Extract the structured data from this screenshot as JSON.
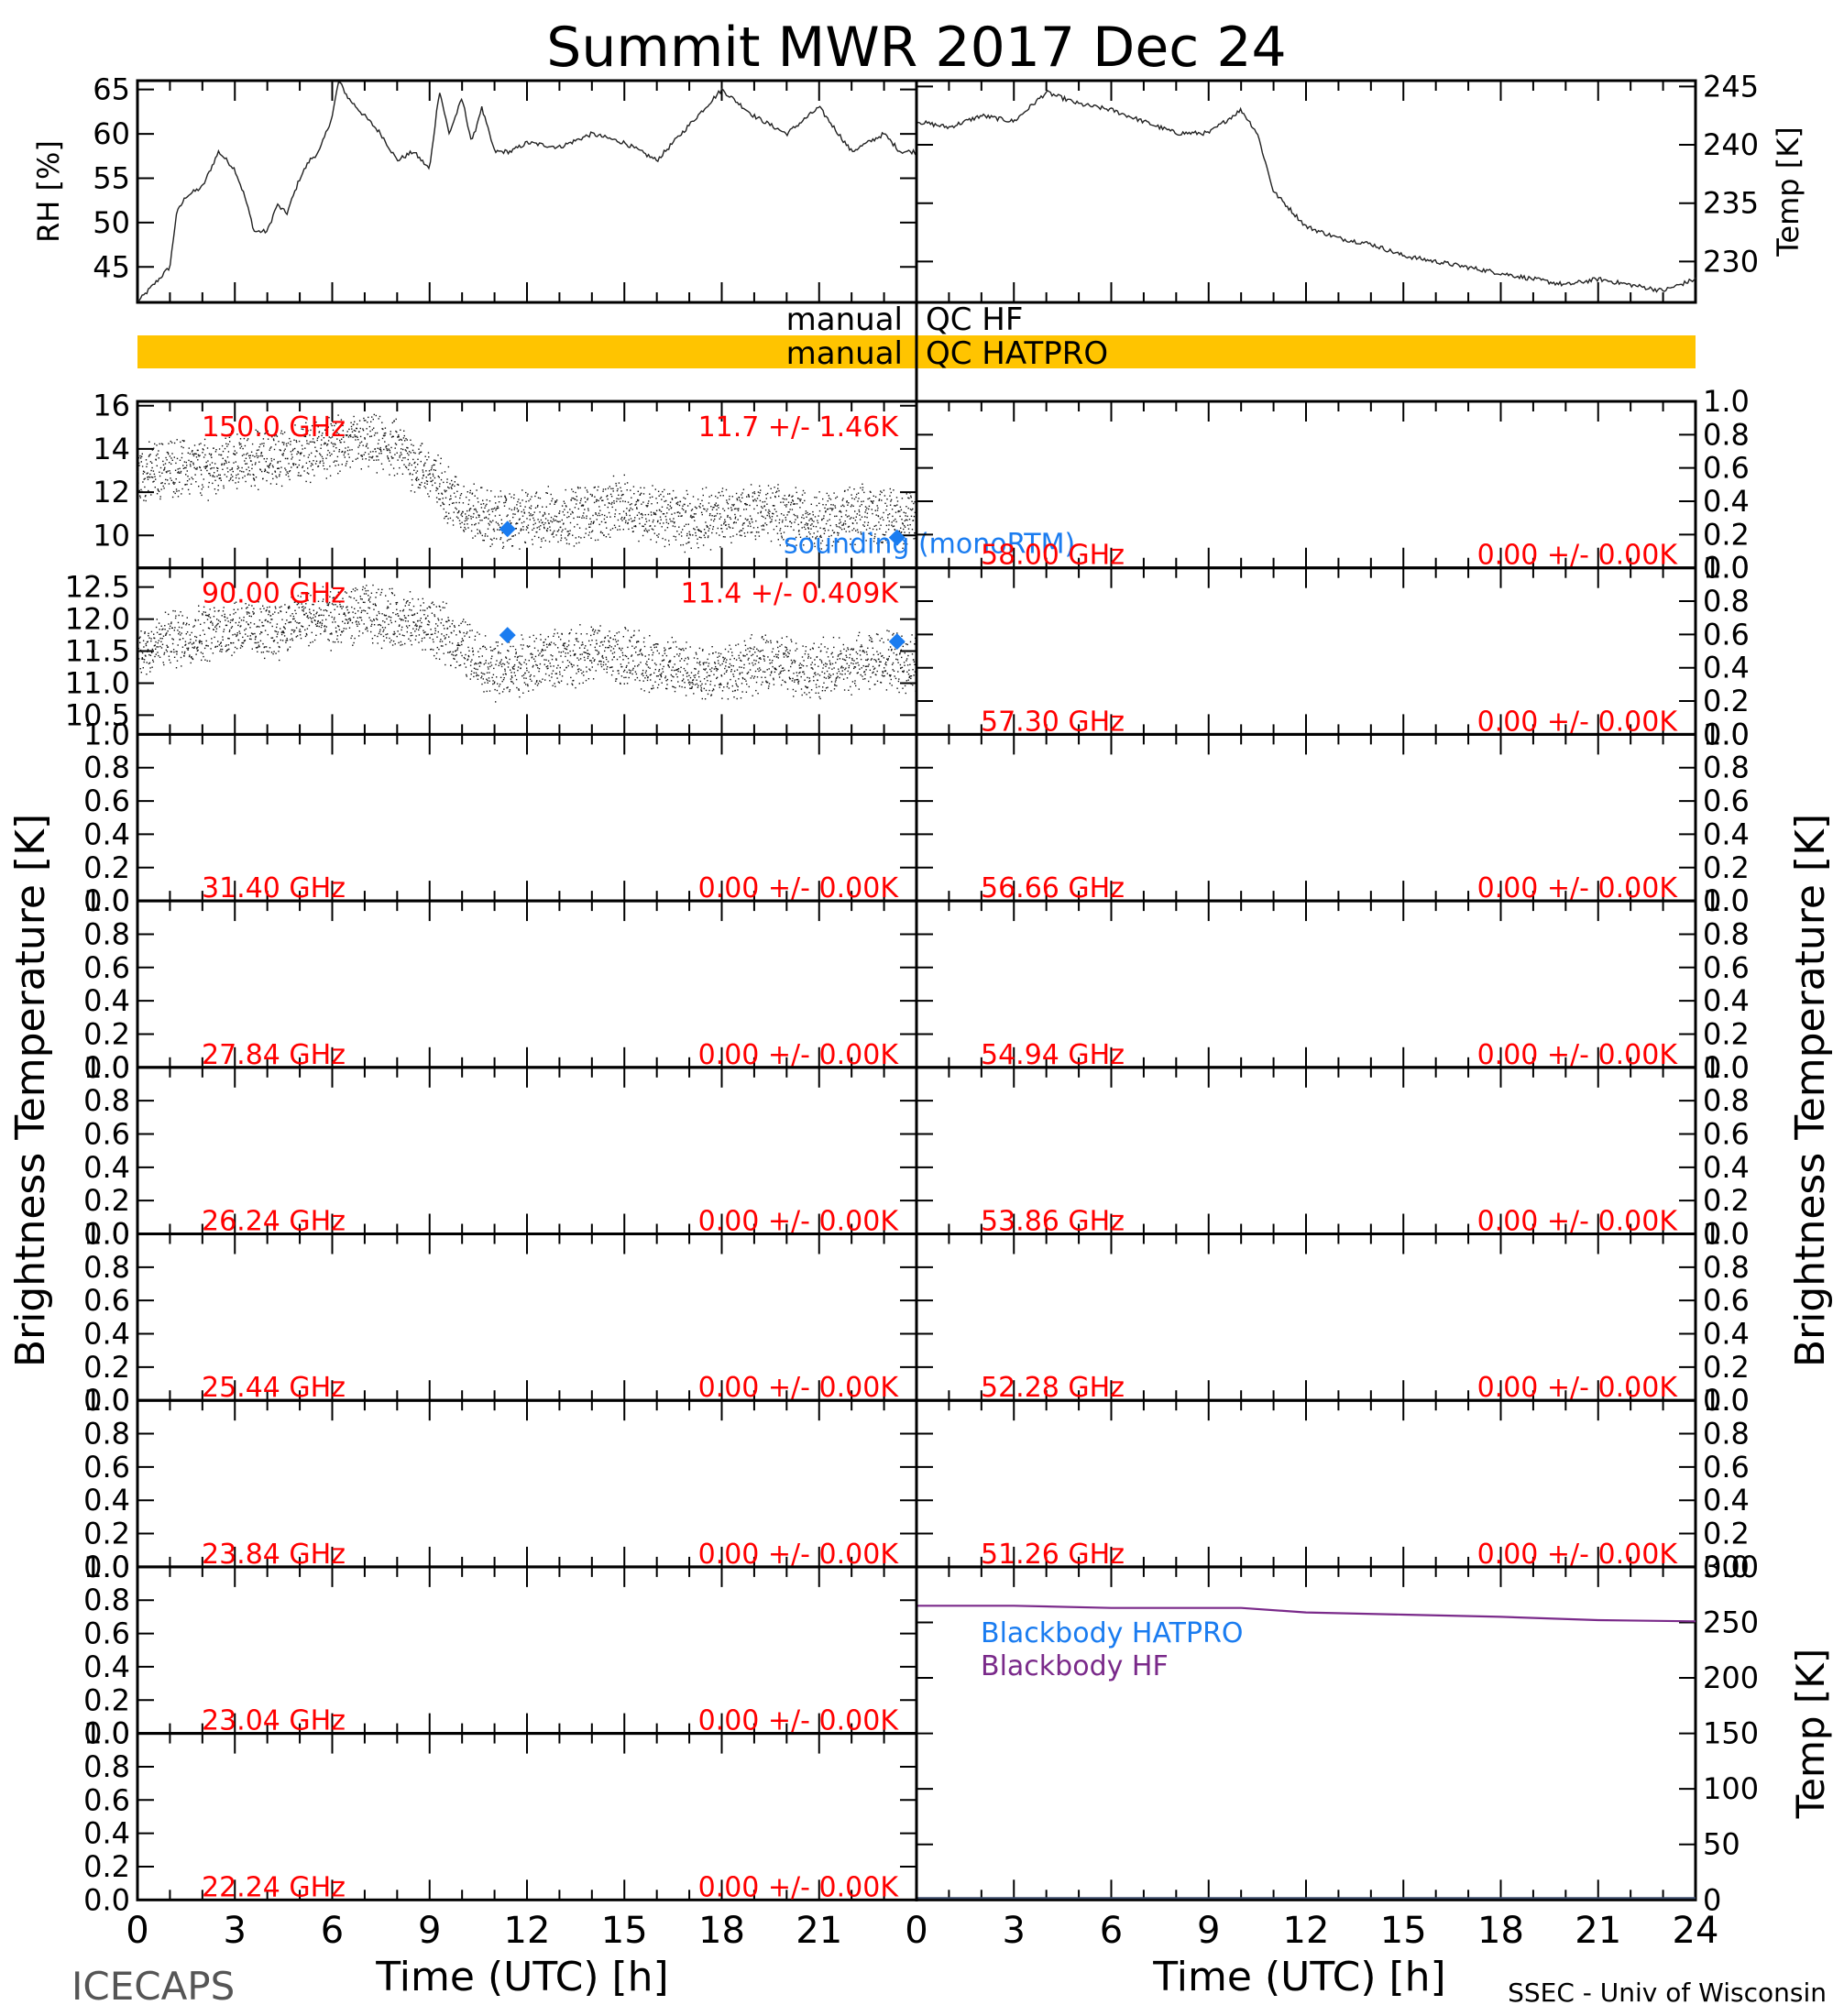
{
  "title": "Summit MWR 2017 Dec 24",
  "footer_left": "ICECAPS",
  "footer_right": "SSEC - Univ of Wisconsin",
  "colors": {
    "axis": "#000000",
    "channel_label": "#ff0000",
    "sounding": "#1a7cf0",
    "qc_bar": "#ffc400",
    "blackbody_hatpro": "#1a7cf0",
    "blackbody_hf": "#7a2a8a"
  },
  "x_axis": {
    "label": "Time (UTC) [h]",
    "ticks_left": [
      "0",
      "3",
      "6",
      "9",
      "12",
      "15",
      "18",
      "21"
    ],
    "ticks_right": [
      "0",
      "3",
      "6",
      "9",
      "12",
      "15",
      "18",
      "21",
      "24"
    ]
  },
  "y_axis_left_label": "Brightness Temperature [K]",
  "y_axis_right_label": "Brightness Temperature [K]",
  "qc": {
    "hf_label": "manual",
    "hf_value": "QC HF",
    "hatpro_label": "manual",
    "hatpro_value": "QC HATPRO"
  },
  "chart_data": [
    {
      "type": "line",
      "panel": "RH",
      "ylabel": "RH [%]",
      "xlim": [
        0,
        24
      ],
      "ylim": [
        41,
        66
      ],
      "yticks": [
        "45",
        "50",
        "55",
        "60",
        "65"
      ],
      "x": [
        0,
        0.5,
        1,
        1.2,
        1.5,
        2,
        2.5,
        3,
        3.3,
        3.6,
        4,
        4.3,
        4.6,
        5,
        5.3,
        5.6,
        6,
        6.2,
        6.5,
        7,
        7.5,
        8,
        8.5,
        9,
        9.3,
        9.6,
        10,
        10.3,
        10.6,
        11,
        11.5,
        12,
        13,
        14,
        15,
        16,
        17,
        18,
        19,
        20,
        21,
        22,
        23,
        23.5
      ],
      "y": [
        41,
        43,
        45,
        51,
        53,
        54,
        58,
        56,
        53,
        49,
        49,
        52,
        51,
        55,
        57,
        58,
        62,
        66,
        64,
        62,
        60,
        57,
        58,
        56,
        65,
        60,
        64,
        59,
        63,
        58,
        58,
        59,
        58.5,
        60,
        59,
        57,
        61,
        65,
        62,
        60,
        63,
        58,
        60,
        58
      ]
    },
    {
      "type": "line",
      "panel": "Temp",
      "ylabel": "Temp [K]",
      "xlim": [
        0,
        24
      ],
      "ylim": [
        226.5,
        245.5
      ],
      "yticks": [
        "230",
        "235",
        "240",
        "245"
      ],
      "x": [
        0,
        1,
        2,
        3,
        4,
        5,
        6,
        7,
        8,
        9,
        10,
        10.5,
        11,
        12,
        13,
        14,
        15,
        16,
        17,
        18,
        19,
        20,
        21,
        22,
        23,
        24
      ],
      "y": [
        242,
        241.5,
        242.5,
        242,
        244.5,
        243.5,
        243,
        242,
        241,
        241,
        243,
        241,
        236,
        233,
        232,
        231.5,
        230.5,
        230,
        229.5,
        229,
        228.5,
        228,
        228.5,
        228,
        227.5,
        228.5
      ]
    },
    {
      "type": "scatter",
      "panel": "150.0 GHz",
      "label": "150.0 GHz",
      "stats": "11.7 +/-  1.46K",
      "ylim": [
        8.5,
        16.2
      ],
      "yticks": [
        "10",
        "12",
        "14",
        "16"
      ],
      "x": [
        0,
        1,
        2,
        3,
        4,
        5,
        6,
        7,
        8,
        9,
        10,
        11,
        12,
        13,
        14,
        15,
        16,
        17,
        18,
        19,
        20,
        21,
        22,
        23,
        24
      ],
      "y": [
        12.8,
        13.2,
        13.1,
        13.5,
        13.6,
        13.9,
        14.1,
        14.3,
        14.0,
        12.8,
        11.3,
        10.7,
        10.8,
        10.9,
        11.1,
        11.4,
        11.0,
        10.7,
        10.9,
        11.2,
        11.0,
        10.8,
        10.9,
        11.0,
        10.7
      ],
      "sounding_x": [
        11.4,
        23.4
      ],
      "sounding_y": [
        10.3,
        9.9
      ],
      "sounding_label": "sounding (monoRTM)"
    },
    {
      "type": "scatter",
      "panel": "90.00 GHz",
      "label": "90.00 GHz",
      "stats": "11.4 +/- 0.409K",
      "ylim": [
        10.2,
        12.8
      ],
      "yticks": [
        "10.5",
        "11.0",
        "11.5",
        "12.0",
        "12.5"
      ],
      "x": [
        0,
        1,
        2,
        3,
        4,
        5,
        6,
        7,
        8,
        9,
        10,
        11,
        12,
        13,
        14,
        15,
        16,
        17,
        18,
        19,
        20,
        21,
        22,
        23,
        24
      ],
      "y": [
        11.5,
        11.7,
        11.8,
        11.9,
        11.8,
        12.0,
        12.0,
        12.1,
        12.0,
        11.9,
        11.6,
        11.2,
        11.3,
        11.4,
        11.5,
        11.4,
        11.3,
        11.2,
        11.2,
        11.3,
        11.3,
        11.2,
        11.3,
        11.4,
        11.3
      ],
      "sounding_x": [
        11.4,
        23.4
      ],
      "sounding_y": [
        11.75,
        11.65
      ]
    },
    {
      "type": "scatter",
      "panel": "58.00 GHz",
      "label": "58.00 GHz",
      "stats": "0.00 +/-  0.00K",
      "x": [],
      "y": []
    },
    {
      "type": "scatter",
      "panel": "57.30 GHz",
      "label": "57.30 GHz",
      "stats": "0.00 +/-  0.00K",
      "x": [],
      "y": []
    },
    {
      "type": "scatter",
      "panel": "31.40 GHz",
      "label": "31.40 GHz",
      "stats": "0.00 +/-  0.00K",
      "x": [],
      "y": []
    },
    {
      "type": "scatter",
      "panel": "56.66 GHz",
      "label": "56.66 GHz",
      "stats": "0.00 +/-  0.00K",
      "x": [],
      "y": []
    },
    {
      "type": "scatter",
      "panel": "27.84 GHz",
      "label": "27.84 GHz",
      "stats": "0.00 +/-  0.00K",
      "x": [],
      "y": []
    },
    {
      "type": "scatter",
      "panel": "54.94 GHz",
      "label": "54.94 GHz",
      "stats": "0.00 +/-  0.00K",
      "x": [],
      "y": []
    },
    {
      "type": "scatter",
      "panel": "26.24 GHz",
      "label": "26.24 GHz",
      "stats": "0.00 +/-  0.00K",
      "x": [],
      "y": []
    },
    {
      "type": "scatter",
      "panel": "53.86 GHz",
      "label": "53.86 GHz",
      "stats": "0.00 +/-  0.00K",
      "x": [],
      "y": []
    },
    {
      "type": "scatter",
      "panel": "25.44 GHz",
      "label": "25.44 GHz",
      "stats": "0.00 +/-  0.00K",
      "x": [],
      "y": []
    },
    {
      "type": "scatter",
      "panel": "52.28 GHz",
      "label": "52.28 GHz",
      "stats": "0.00 +/-  0.00K",
      "x": [],
      "y": []
    },
    {
      "type": "scatter",
      "panel": "23.84 GHz",
      "label": "23.84 GHz",
      "stats": "0.00 +/-  0.00K",
      "x": [],
      "y": []
    },
    {
      "type": "scatter",
      "panel": "51.26 GHz",
      "label": "51.26 GHz",
      "stats": "0.00 +/-  0.00K",
      "x": [],
      "y": []
    },
    {
      "type": "scatter",
      "panel": "23.04 GHz",
      "label": "23.04 GHz",
      "stats": "0.00 +/-  0.00K",
      "x": [],
      "y": []
    },
    {
      "type": "scatter",
      "panel": "22.24 GHz",
      "label": "22.24 GHz",
      "stats": "0.00 +/-  0.00K",
      "x": [],
      "y": []
    },
    {
      "type": "line",
      "panel": "Blackbody",
      "ylabel": "Temp [K]",
      "xlim": [
        0,
        24
      ],
      "ylim": [
        0,
        300
      ],
      "yticks": [
        "0",
        "50",
        "100",
        "150",
        "200",
        "250",
        "300"
      ],
      "series": [
        {
          "name": "Blackbody HATPRO",
          "x": [],
          "y": []
        },
        {
          "name": "Blackbody HF",
          "x": [
            0,
            3,
            6,
            9,
            10,
            12,
            15,
            18,
            21,
            24
          ],
          "y": [
            265,
            265,
            263,
            263,
            263,
            259,
            257,
            255,
            252,
            251
          ]
        }
      ]
    }
  ]
}
